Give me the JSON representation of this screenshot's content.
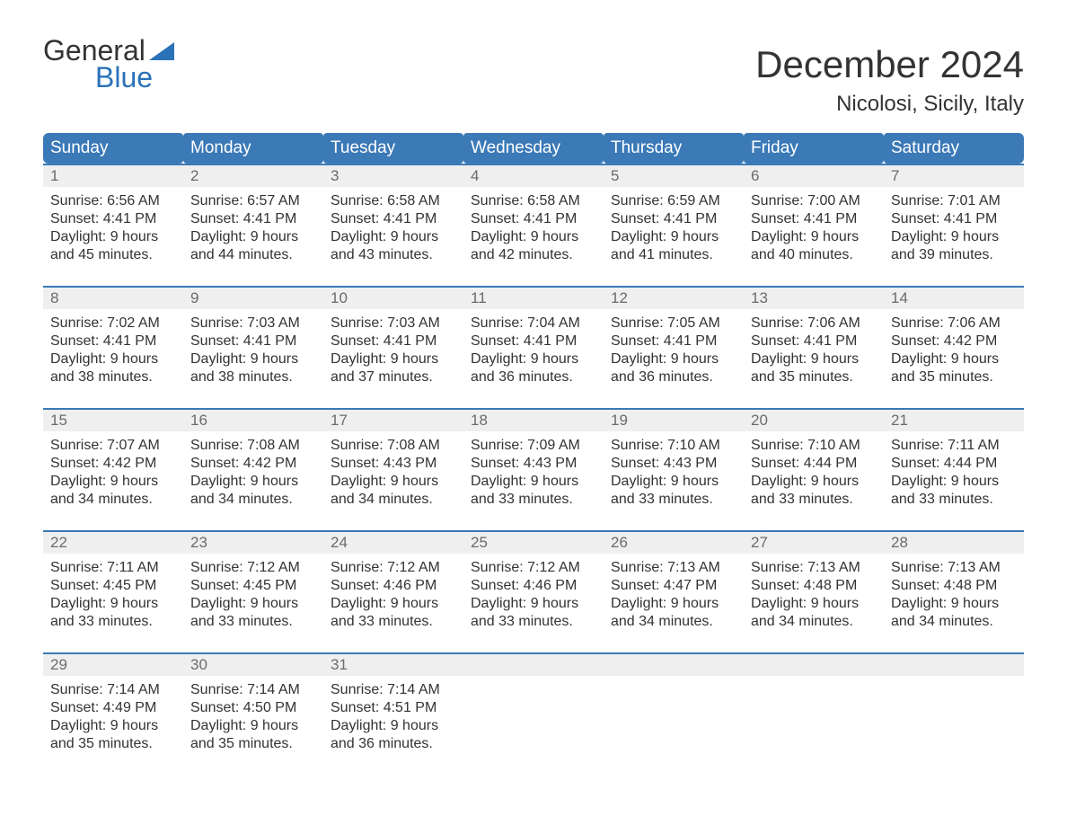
{
  "branding": {
    "logo_word1": "General",
    "logo_word2": "Blue",
    "logo_word1_color": "#333333",
    "logo_word2_color": "#2b72b8",
    "logo_triangle_color": "#2b72b8"
  },
  "colors": {
    "header_bg": "#3b79b7",
    "header_text": "#ffffff",
    "daynum_bg": "#efefef",
    "daynum_border_top": "#3b79b7",
    "daynum_text": "#6b6b6b",
    "body_text": "#333333",
    "page_bg": "#ffffff"
  },
  "header": {
    "month_title": "December 2024",
    "location": "Nicolosi, Sicily, Italy"
  },
  "days_of_week": [
    "Sunday",
    "Monday",
    "Tuesday",
    "Wednesday",
    "Thursday",
    "Friday",
    "Saturday"
  ],
  "weeks": [
    {
      "nums": [
        "1",
        "2",
        "3",
        "4",
        "5",
        "6",
        "7"
      ],
      "cells": [
        [
          "Sunrise: 6:56 AM",
          "Sunset: 4:41 PM",
          "Daylight: 9 hours",
          "and 45 minutes."
        ],
        [
          "Sunrise: 6:57 AM",
          "Sunset: 4:41 PM",
          "Daylight: 9 hours",
          "and 44 minutes."
        ],
        [
          "Sunrise: 6:58 AM",
          "Sunset: 4:41 PM",
          "Daylight: 9 hours",
          "and 43 minutes."
        ],
        [
          "Sunrise: 6:58 AM",
          "Sunset: 4:41 PM",
          "Daylight: 9 hours",
          "and 42 minutes."
        ],
        [
          "Sunrise: 6:59 AM",
          "Sunset: 4:41 PM",
          "Daylight: 9 hours",
          "and 41 minutes."
        ],
        [
          "Sunrise: 7:00 AM",
          "Sunset: 4:41 PM",
          "Daylight: 9 hours",
          "and 40 minutes."
        ],
        [
          "Sunrise: 7:01 AM",
          "Sunset: 4:41 PM",
          "Daylight: 9 hours",
          "and 39 minutes."
        ]
      ]
    },
    {
      "nums": [
        "8",
        "9",
        "10",
        "11",
        "12",
        "13",
        "14"
      ],
      "cells": [
        [
          "Sunrise: 7:02 AM",
          "Sunset: 4:41 PM",
          "Daylight: 9 hours",
          "and 38 minutes."
        ],
        [
          "Sunrise: 7:03 AM",
          "Sunset: 4:41 PM",
          "Daylight: 9 hours",
          "and 38 minutes."
        ],
        [
          "Sunrise: 7:03 AM",
          "Sunset: 4:41 PM",
          "Daylight: 9 hours",
          "and 37 minutes."
        ],
        [
          "Sunrise: 7:04 AM",
          "Sunset: 4:41 PM",
          "Daylight: 9 hours",
          "and 36 minutes."
        ],
        [
          "Sunrise: 7:05 AM",
          "Sunset: 4:41 PM",
          "Daylight: 9 hours",
          "and 36 minutes."
        ],
        [
          "Sunrise: 7:06 AM",
          "Sunset: 4:41 PM",
          "Daylight: 9 hours",
          "and 35 minutes."
        ],
        [
          "Sunrise: 7:06 AM",
          "Sunset: 4:42 PM",
          "Daylight: 9 hours",
          "and 35 minutes."
        ]
      ]
    },
    {
      "nums": [
        "15",
        "16",
        "17",
        "18",
        "19",
        "20",
        "21"
      ],
      "cells": [
        [
          "Sunrise: 7:07 AM",
          "Sunset: 4:42 PM",
          "Daylight: 9 hours",
          "and 34 minutes."
        ],
        [
          "Sunrise: 7:08 AM",
          "Sunset: 4:42 PM",
          "Daylight: 9 hours",
          "and 34 minutes."
        ],
        [
          "Sunrise: 7:08 AM",
          "Sunset: 4:43 PM",
          "Daylight: 9 hours",
          "and 34 minutes."
        ],
        [
          "Sunrise: 7:09 AM",
          "Sunset: 4:43 PM",
          "Daylight: 9 hours",
          "and 33 minutes."
        ],
        [
          "Sunrise: 7:10 AM",
          "Sunset: 4:43 PM",
          "Daylight: 9 hours",
          "and 33 minutes."
        ],
        [
          "Sunrise: 7:10 AM",
          "Sunset: 4:44 PM",
          "Daylight: 9 hours",
          "and 33 minutes."
        ],
        [
          "Sunrise: 7:11 AM",
          "Sunset: 4:44 PM",
          "Daylight: 9 hours",
          "and 33 minutes."
        ]
      ]
    },
    {
      "nums": [
        "22",
        "23",
        "24",
        "25",
        "26",
        "27",
        "28"
      ],
      "cells": [
        [
          "Sunrise: 7:11 AM",
          "Sunset: 4:45 PM",
          "Daylight: 9 hours",
          "and 33 minutes."
        ],
        [
          "Sunrise: 7:12 AM",
          "Sunset: 4:45 PM",
          "Daylight: 9 hours",
          "and 33 minutes."
        ],
        [
          "Sunrise: 7:12 AM",
          "Sunset: 4:46 PM",
          "Daylight: 9 hours",
          "and 33 minutes."
        ],
        [
          "Sunrise: 7:12 AM",
          "Sunset: 4:46 PM",
          "Daylight: 9 hours",
          "and 33 minutes."
        ],
        [
          "Sunrise: 7:13 AM",
          "Sunset: 4:47 PM",
          "Daylight: 9 hours",
          "and 34 minutes."
        ],
        [
          "Sunrise: 7:13 AM",
          "Sunset: 4:48 PM",
          "Daylight: 9 hours",
          "and 34 minutes."
        ],
        [
          "Sunrise: 7:13 AM",
          "Sunset: 4:48 PM",
          "Daylight: 9 hours",
          "and 34 minutes."
        ]
      ]
    },
    {
      "nums": [
        "29",
        "30",
        "31",
        "",
        "",
        "",
        ""
      ],
      "cells": [
        [
          "Sunrise: 7:14 AM",
          "Sunset: 4:49 PM",
          "Daylight: 9 hours",
          "and 35 minutes."
        ],
        [
          "Sunrise: 7:14 AM",
          "Sunset: 4:50 PM",
          "Daylight: 9 hours",
          "and 35 minutes."
        ],
        [
          "Sunrise: 7:14 AM",
          "Sunset: 4:51 PM",
          "Daylight: 9 hours",
          "and 36 minutes."
        ],
        [],
        [],
        [],
        []
      ]
    }
  ]
}
